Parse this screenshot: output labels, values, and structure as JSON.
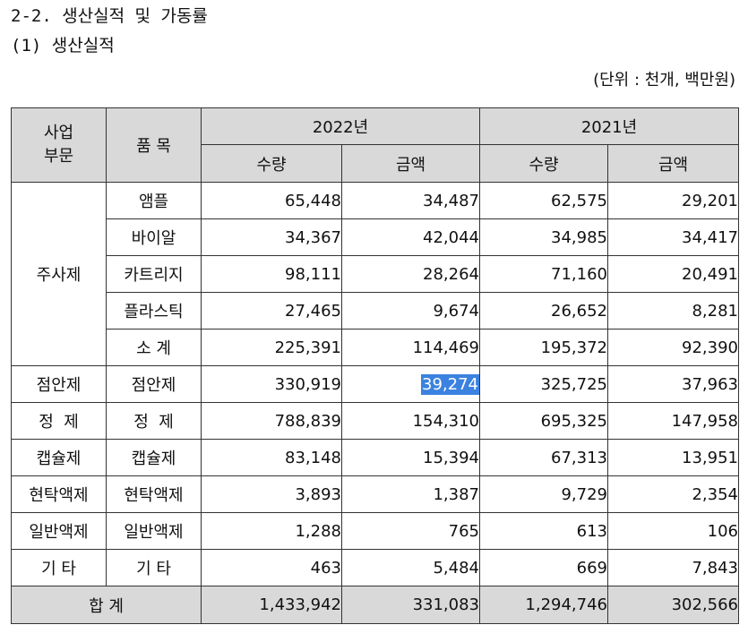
{
  "heading": "2-2. 생산실적 및 가동률",
  "subheading": "(1) 생산실적",
  "unit_note": "(단위 : 천개, 백만원)",
  "table": {
    "header": {
      "division": "사업\n부문",
      "item": "품 목",
      "year_2022": "2022년",
      "year_2021": "2021년",
      "qty": "수량",
      "amount": "금액"
    },
    "injection_group": "주사제",
    "rows": [
      {
        "division": "",
        "item": "앰플",
        "q22": "65,448",
        "a22": "34,487",
        "q21": "62,575",
        "a21": "29,201"
      },
      {
        "division": "",
        "item": "바이알",
        "q22": "34,367",
        "a22": "42,044",
        "q21": "34,985",
        "a21": "34,417"
      },
      {
        "division": "",
        "item": "카트리지",
        "q22": "98,111",
        "a22": "28,264",
        "q21": "71,160",
        "a21": "20,491"
      },
      {
        "division": "",
        "item": "플라스틱",
        "q22": "27,465",
        "a22": "9,674",
        "q21": "26,652",
        "a21": "8,281"
      },
      {
        "division": "",
        "item": "소 계",
        "q22": "225,391",
        "a22": "114,469",
        "q21": "195,372",
        "a21": "92,390"
      },
      {
        "division": "점안제",
        "item": "점안제",
        "q22": "330,919",
        "a22": "39,274",
        "q21": "325,725",
        "a21": "37,963"
      },
      {
        "division": "정  제",
        "item": "정  제",
        "q22": "788,839",
        "a22": "154,310",
        "q21": "695,325",
        "a21": "147,958"
      },
      {
        "division": "캡슐제",
        "item": "캡슐제",
        "q22": "83,148",
        "a22": "15,394",
        "q21": "67,313",
        "a21": "13,951"
      },
      {
        "division": "현탁액제",
        "item": "현탁액제",
        "q22": "3,893",
        "a22": "1,387",
        "q21": "9,729",
        "a21": "2,354"
      },
      {
        "division": "일반액제",
        "item": "일반액제",
        "q22": "1,288",
        "a22": "765",
        "q21": "613",
        "a21": "106"
      },
      {
        "division": "기 타",
        "item": "기 타",
        "q22": "463",
        "a22": "5,484",
        "q21": "669",
        "a21": "7,843"
      }
    ],
    "total": {
      "label": "합 계",
      "q22": "1,433,942",
      "a22": "331,083",
      "q21": "1,294,746",
      "a21": "302,566"
    }
  },
  "selection_color": "#3b82e0"
}
